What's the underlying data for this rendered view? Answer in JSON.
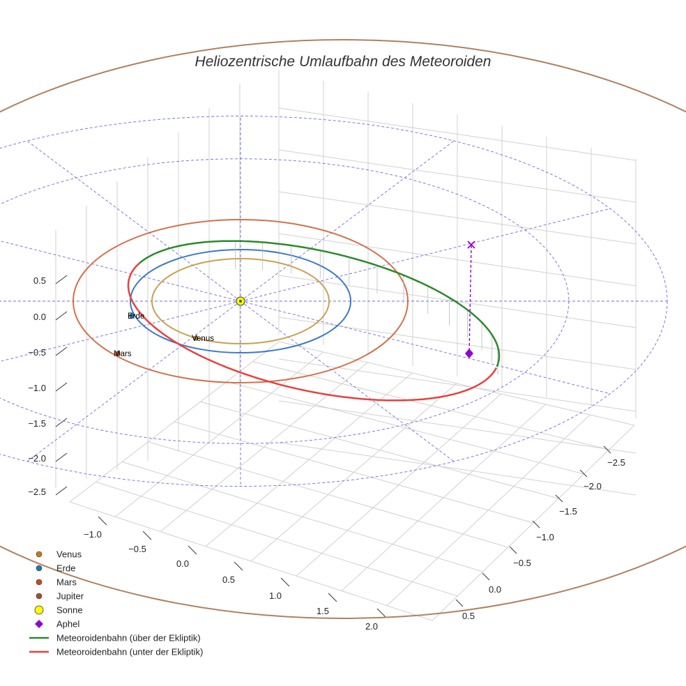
{
  "chart_data": {
    "type": "line",
    "projection": "3d",
    "title": "Heliozentrische Umlaufbahn des Meteoroiden",
    "xlabel": "",
    "ylabel": "",
    "zlabel": "",
    "x_ticks": [
      "−1.0",
      "−0.5",
      "0.0",
      "0.5",
      "1.0",
      "1.5",
      "2.0"
    ],
    "y_ticks": [
      "−2.5",
      "−2.0",
      "−1.5",
      "−1.0",
      "−0.5",
      "0.0",
      "0.5"
    ],
    "z_ticks": [
      "0.5",
      "0.0",
      "−0.5",
      "−1.0",
      "−1.5",
      "−2.0",
      "−2.5"
    ],
    "grid": true,
    "legend_position": "bottom-left",
    "planets": [
      {
        "name": "Venus",
        "orbit_radius_au": 0.72,
        "label": "Venus",
        "color": "#c8a050"
      },
      {
        "name": "Erde",
        "orbit_radius_au": 1.0,
        "label": "Erde",
        "color": "#3a78c8"
      },
      {
        "name": "Mars",
        "orbit_radius_au": 1.52,
        "label": "Mars",
        "color": "#d4704a"
      },
      {
        "name": "Jupiter",
        "orbit_radius_au": 5.2,
        "label": "",
        "color": "#b08060"
      }
    ],
    "sun": {
      "name": "Sonne",
      "x": 0,
      "y": 0,
      "z": 0,
      "color": "#ffff00"
    },
    "meteoroid_orbit": {
      "semi_major_axis_au": 1.71,
      "eccentricity": 0.4,
      "max_height_au": 0.25,
      "segments": [
        {
          "name": "Meteoroidenbahn (über der Ekliptik)",
          "color": "#2a8a2a"
        },
        {
          "name": "Meteoroidenbahn (unter der Ekliptik)",
          "color": "#e8413c"
        }
      ]
    },
    "aphel": {
      "name": "Aphel",
      "distance_au": 2.39,
      "color": "#9400d3"
    },
    "reference_circles_au": [
      2.0,
      2.6
    ],
    "legend": [
      {
        "label": "Venus",
        "marker": "circle",
        "color": "#c87a1e"
      },
      {
        "label": "Erde",
        "marker": "circle",
        "color": "#1f77b4"
      },
      {
        "label": "Mars",
        "marker": "circle",
        "color": "#c84a14"
      },
      {
        "label": "Jupiter",
        "marker": "circle",
        "color": "#a0522d"
      },
      {
        "label": "Sonne",
        "marker": "big-circle",
        "color": "#ffff00"
      },
      {
        "label": "Aphel",
        "marker": "diamond",
        "color": "#9400d3"
      },
      {
        "label": "Meteoroidenbahn (über der Ekliptik)",
        "marker": "line",
        "color": "#2a8a2a"
      },
      {
        "label": "Meteoroidenbahn (unter der Ekliptik)",
        "marker": "line",
        "color": "#e8413c"
      }
    ]
  }
}
